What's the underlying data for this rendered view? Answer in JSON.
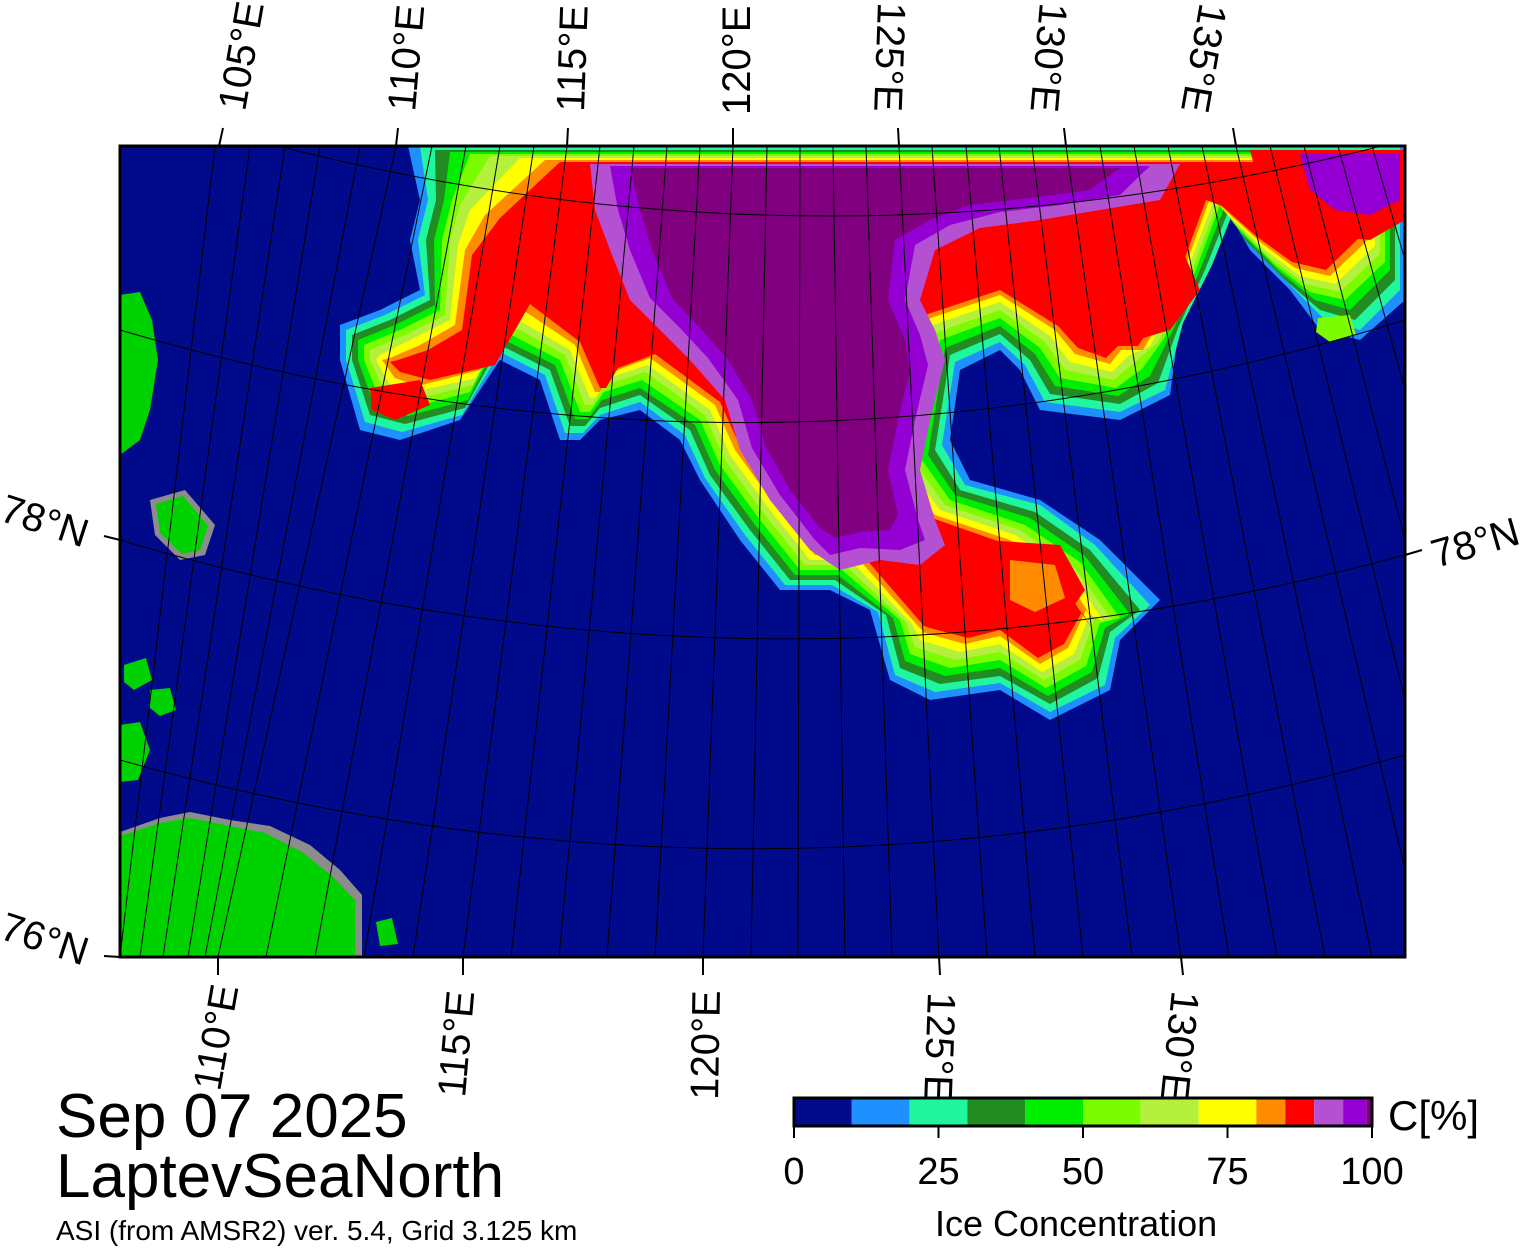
{
  "date": "Sep 07 2025",
  "region": "LaptevSeaNorth",
  "product": "ASI (from AMSR2) ver. 5.4,  Grid 3.125 km",
  "top_lon_labels": [
    "105°E",
    "110°E",
    "115°E",
    "120°E",
    "125°E",
    "130°E",
    "135°E"
  ],
  "bottom_lon_labels": [
    "110°E",
    "115°E",
    "120°E",
    "125°E",
    "130°E"
  ],
  "lat_labels": {
    "left_upper": "78°N",
    "left_lower": "76°N",
    "right": "78°N"
  },
  "colorbar": {
    "title": "Ice Concentration",
    "unit": "C[%]",
    "ticks": [
      "0",
      "25",
      "50",
      "75",
      "100"
    ],
    "range": [
      0,
      100
    ],
    "colors": [
      "#020a8c",
      "#1e90ff",
      "#20f5a0",
      "#228b22",
      "#00ee00",
      "#7cfc00",
      "#b4f03c",
      "#ffff00",
      "#ff8c00",
      "#ff0000",
      "#b450d2",
      "#9400d3",
      "#800080"
    ]
  },
  "colors": {
    "ocean": "#020a8c",
    "land": "#00d200",
    "coast": "#8c8c8c"
  }
}
